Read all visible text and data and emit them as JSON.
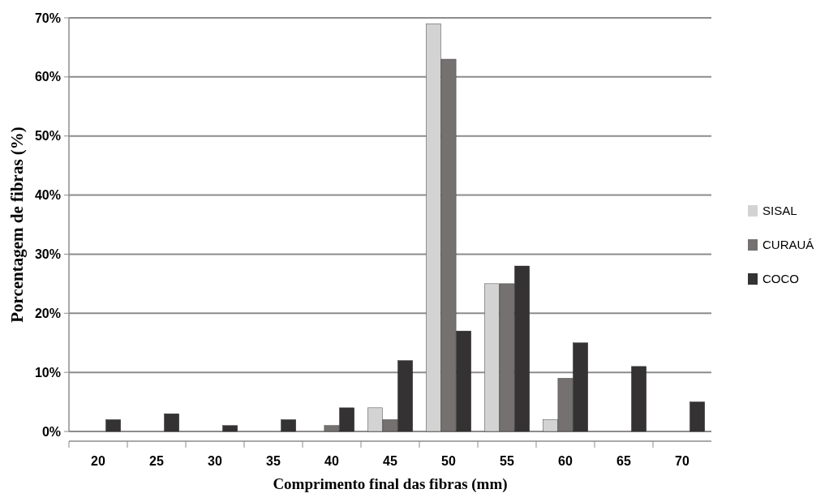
{
  "chart_data": {
    "type": "bar",
    "xlabel": "Comprimento final das fibras (mm)",
    "ylabel": "Porcentagem de fibras (%)",
    "categories": [
      "20",
      "25",
      "30",
      "35",
      "40",
      "45",
      "50",
      "55",
      "60",
      "65",
      "70"
    ],
    "series": [
      {
        "name": "SISAL",
        "color": "#d3d3d3",
        "values": [
          0,
          0,
          0,
          0,
          0,
          4,
          69,
          25,
          2,
          0,
          0
        ]
      },
      {
        "name": "CURAUÁ",
        "color": "#767171",
        "values": [
          0,
          0,
          0,
          0,
          1,
          2,
          63,
          25,
          9,
          0,
          0
        ]
      },
      {
        "name": "COCO",
        "color": "#343233",
        "values": [
          2,
          3,
          1,
          2,
          4,
          12,
          17,
          28,
          15,
          11,
          5
        ]
      }
    ],
    "ylim": [
      0,
      70
    ],
    "yticks": [
      {
        "value": 0,
        "label": "0%"
      },
      {
        "value": 10,
        "label": "10%"
      },
      {
        "value": 20,
        "label": "20%"
      },
      {
        "value": 30,
        "label": "30%"
      },
      {
        "value": 40,
        "label": "40%"
      },
      {
        "value": 50,
        "label": "50%"
      },
      {
        "value": 60,
        "label": "60%"
      },
      {
        "value": 70,
        "label": "70%"
      }
    ],
    "grid": "y",
    "legend": "right"
  }
}
